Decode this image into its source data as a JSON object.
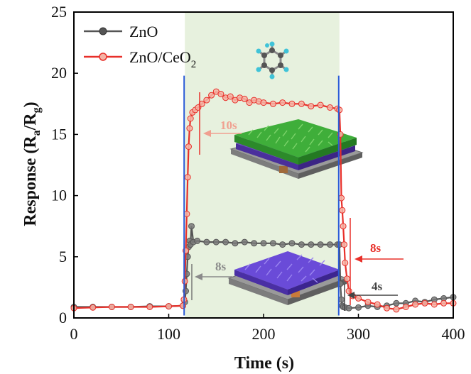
{
  "chart_data": {
    "type": "line",
    "title": "",
    "xlabel": "Time (s)",
    "ylabel_main": "Response (R",
    "ylabel_sub_a": "a",
    "ylabel_mid": "/R",
    "ylabel_sub_g": "g",
    "ylabel_end": ")",
    "xlim": [
      0,
      400
    ],
    "ylim": [
      0,
      25
    ],
    "xticks": [
      0,
      100,
      200,
      300,
      400
    ],
    "yticks": [
      0,
      5,
      10,
      15,
      20,
      25
    ],
    "gas_window": [
      117,
      280
    ],
    "series": [
      {
        "name": "ZnO",
        "color": "#555555",
        "x": [
          0,
          20,
          40,
          60,
          80,
          100,
          115,
          117,
          118,
          119,
          120,
          121,
          122,
          123,
          124,
          126,
          130,
          140,
          150,
          160,
          170,
          180,
          190,
          200,
          210,
          220,
          230,
          240,
          250,
          260,
          270,
          278,
          280,
          281,
          282,
          283,
          284,
          286,
          290,
          300,
          310,
          320,
          330,
          340,
          350,
          360,
          370,
          380,
          390,
          400
        ],
        "y": [
          0.9,
          0.9,
          0.9,
          0.9,
          0.95,
          0.95,
          1.0,
          1.3,
          2.2,
          3.6,
          5.0,
          5.8,
          6.3,
          6.0,
          7.5,
          6.2,
          6.3,
          6.2,
          6.2,
          6.2,
          6.1,
          6.2,
          6.1,
          6.1,
          6.1,
          6.0,
          6.1,
          6.0,
          6.0,
          6.0,
          6.0,
          6.0,
          6.0,
          2.8,
          1.5,
          1.0,
          0.9,
          0.85,
          0.8,
          0.85,
          1.0,
          0.9,
          1.0,
          1.2,
          1.2,
          1.4,
          1.3,
          1.5,
          1.6,
          1.7
        ]
      },
      {
        "name": "ZnO/CeO",
        "name_sub": "2",
        "color": "#e8302a",
        "x": [
          0,
          20,
          40,
          60,
          80,
          100,
          115,
          116,
          117,
          118,
          119,
          120,
          121,
          122,
          123,
          125,
          128,
          131,
          135,
          140,
          145,
          150,
          155,
          160,
          165,
          170,
          175,
          180,
          185,
          190,
          195,
          200,
          210,
          220,
          230,
          240,
          250,
          260,
          270,
          278,
          280,
          281,
          282,
          283,
          284,
          285,
          286,
          288,
          290,
          294,
          300,
          310,
          320,
          330,
          340,
          350,
          360,
          370,
          380,
          390,
          400
        ],
        "y": [
          0.8,
          0.85,
          0.9,
          0.9,
          0.9,
          0.95,
          1.0,
          1.5,
          3.0,
          5.5,
          8.5,
          11.5,
          14.0,
          15.5,
          16.3,
          16.8,
          17.0,
          17.2,
          17.5,
          17.8,
          18.2,
          18.5,
          18.3,
          18.0,
          18.1,
          17.8,
          18.0,
          17.9,
          17.6,
          17.8,
          17.7,
          17.6,
          17.5,
          17.6,
          17.5,
          17.5,
          17.3,
          17.4,
          17.2,
          17.1,
          17.0,
          15.0,
          9.8,
          8.8,
          7.5,
          6.0,
          4.5,
          3.2,
          2.2,
          1.8,
          1.6,
          1.3,
          1.1,
          0.8,
          0.7,
          0.9,
          1.1,
          1.2,
          1.1,
          1.2,
          1.2
        ]
      }
    ],
    "annotations": [
      {
        "text": "10s",
        "color": "#f0a090"
      },
      {
        "text": "8s",
        "color": "#8a8a8a"
      },
      {
        "text": "8s",
        "color": "#e8302a"
      },
      {
        "text": "4s",
        "color": "#444444"
      }
    ]
  },
  "colors": {
    "zno": "#555555",
    "zno_ceo2": "#e8302a",
    "zno_ceo2_light": "#f4b4a6",
    "gas_region": "#e7f1de",
    "marker_line": "#2a5bd7",
    "annotation_line_red": "#e8302a",
    "annotation_line_gray": "#777777"
  },
  "icons": [
    "benzene-molecule-icon",
    "sensor-film-green-icon",
    "sensor-film-purple-icon"
  ]
}
